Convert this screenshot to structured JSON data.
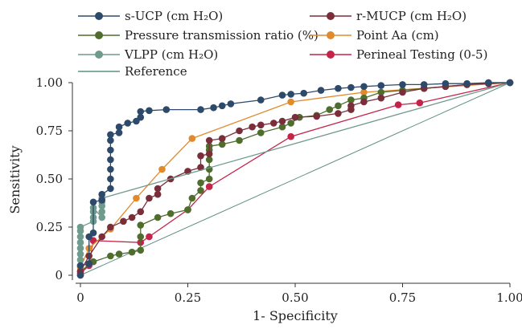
{
  "chart_data": {
    "type": "line",
    "title": "",
    "xlabel": "1- Specificity",
    "ylabel": "Sensitivity",
    "xlim": [
      0,
      1
    ],
    "ylim": [
      0,
      1
    ],
    "x_ticks": [
      "0",
      "0.25",
      "0.50",
      "0.75",
      "1.00"
    ],
    "y_ticks": [
      "0",
      "0.25",
      "0.50",
      "0.75",
      "1.00"
    ],
    "grid": false,
    "legend_position": "top",
    "series": [
      {
        "name": "s-UCP (cm H₂O)",
        "color": "#2e4a6b",
        "marker": "circle",
        "points": [
          [
            0,
            0
          ],
          [
            0,
            0.05
          ],
          [
            0.02,
            0.06
          ],
          [
            0.02,
            0.2
          ],
          [
            0.03,
            0.22
          ],
          [
            0.03,
            0.38
          ],
          [
            0.05,
            0.39
          ],
          [
            0.05,
            0.42
          ],
          [
            0.07,
            0.45
          ],
          [
            0.07,
            0.5
          ],
          [
            0.07,
            0.55
          ],
          [
            0.07,
            0.6
          ],
          [
            0.07,
            0.65
          ],
          [
            0.07,
            0.7
          ],
          [
            0.07,
            0.73
          ],
          [
            0.09,
            0.74
          ],
          [
            0.09,
            0.77
          ],
          [
            0.11,
            0.79
          ],
          [
            0.13,
            0.8
          ],
          [
            0.14,
            0.82
          ],
          [
            0.14,
            0.85
          ],
          [
            0.16,
            0.855
          ],
          [
            0.2,
            0.86
          ],
          [
            0.28,
            0.86
          ],
          [
            0.31,
            0.87
          ],
          [
            0.33,
            0.88
          ],
          [
            0.35,
            0.89
          ],
          [
            0.42,
            0.91
          ],
          [
            0.47,
            0.935
          ],
          [
            0.49,
            0.94
          ],
          [
            0.52,
            0.945
          ],
          [
            0.56,
            0.96
          ],
          [
            0.6,
            0.97
          ],
          [
            0.63,
            0.975
          ],
          [
            0.66,
            0.98
          ],
          [
            0.7,
            0.985
          ],
          [
            0.75,
            0.99
          ],
          [
            0.8,
            0.99
          ],
          [
            0.85,
            0.995
          ],
          [
            0.9,
            0.995
          ],
          [
            0.95,
            1.0
          ],
          [
            1.0,
            1.0
          ]
        ]
      },
      {
        "name": "r-MUCP (cm H₂O)",
        "color": "#7a2e3a",
        "marker": "circle",
        "points": [
          [
            0,
            0
          ],
          [
            0,
            0.02
          ],
          [
            0.02,
            0.1
          ],
          [
            0.05,
            0.2
          ],
          [
            0.07,
            0.25
          ],
          [
            0.1,
            0.28
          ],
          [
            0.12,
            0.3
          ],
          [
            0.14,
            0.33
          ],
          [
            0.16,
            0.4
          ],
          [
            0.18,
            0.42
          ],
          [
            0.18,
            0.45
          ],
          [
            0.21,
            0.5
          ],
          [
            0.25,
            0.54
          ],
          [
            0.28,
            0.56
          ],
          [
            0.28,
            0.62
          ],
          [
            0.3,
            0.63
          ],
          [
            0.3,
            0.7
          ],
          [
            0.33,
            0.71
          ],
          [
            0.37,
            0.75
          ],
          [
            0.4,
            0.77
          ],
          [
            0.42,
            0.78
          ],
          [
            0.45,
            0.79
          ],
          [
            0.47,
            0.8
          ],
          [
            0.5,
            0.82
          ],
          [
            0.55,
            0.825
          ],
          [
            0.6,
            0.84
          ],
          [
            0.63,
            0.86
          ],
          [
            0.63,
            0.88
          ],
          [
            0.66,
            0.9
          ],
          [
            0.7,
            0.92
          ],
          [
            0.75,
            0.95
          ],
          [
            0.8,
            0.97
          ],
          [
            0.85,
            0.98
          ],
          [
            0.9,
            0.99
          ],
          [
            0.95,
            0.995
          ],
          [
            1.0,
            1.0
          ]
        ]
      },
      {
        "name": "Pressure transmission ratio (%)",
        "color": "#4f6e2e",
        "marker": "circle",
        "points": [
          [
            0,
            0.02
          ],
          [
            0.03,
            0.07
          ],
          [
            0.07,
            0.1
          ],
          [
            0.09,
            0.11
          ],
          [
            0.12,
            0.12
          ],
          [
            0.14,
            0.13
          ],
          [
            0.14,
            0.2
          ],
          [
            0.14,
            0.26
          ],
          [
            0.18,
            0.3
          ],
          [
            0.21,
            0.32
          ],
          [
            0.25,
            0.34
          ],
          [
            0.26,
            0.4
          ],
          [
            0.28,
            0.44
          ],
          [
            0.28,
            0.48
          ],
          [
            0.3,
            0.5
          ],
          [
            0.3,
            0.55
          ],
          [
            0.3,
            0.6
          ],
          [
            0.3,
            0.65
          ],
          [
            0.3,
            0.67
          ],
          [
            0.33,
            0.68
          ],
          [
            0.37,
            0.7
          ],
          [
            0.42,
            0.74
          ],
          [
            0.47,
            0.77
          ],
          [
            0.49,
            0.79
          ],
          [
            0.51,
            0.82
          ],
          [
            0.55,
            0.83
          ],
          [
            0.58,
            0.86
          ],
          [
            0.6,
            0.88
          ],
          [
            0.63,
            0.91
          ],
          [
            0.66,
            0.92
          ],
          [
            0.7,
            0.95
          ],
          [
            0.75,
            0.96
          ],
          [
            0.8,
            0.97
          ],
          [
            0.85,
            0.98
          ],
          [
            0.9,
            0.99
          ],
          [
            0.95,
            1.0
          ],
          [
            1.0,
            1.0
          ]
        ]
      },
      {
        "name": "Point Aa (cm)",
        "color": "#e08a2e",
        "marker": "circle",
        "points": [
          [
            0,
            0.04
          ],
          [
            0.02,
            0.14
          ],
          [
            0.07,
            0.24
          ],
          [
            0.13,
            0.4
          ],
          [
            0.19,
            0.55
          ],
          [
            0.26,
            0.71
          ],
          [
            0.49,
            0.9
          ],
          [
            0.66,
            0.95
          ],
          [
            1.0,
            1.0
          ]
        ]
      },
      {
        "name": "VLPP (cm H₂O)",
        "color": "#6f9a8e",
        "marker": "circle",
        "points": [
          [
            0,
            0.05
          ],
          [
            0,
            0.08
          ],
          [
            0,
            0.11
          ],
          [
            0,
            0.14
          ],
          [
            0,
            0.17
          ],
          [
            0,
            0.2
          ],
          [
            0,
            0.23
          ],
          [
            0,
            0.25
          ],
          [
            0.03,
            0.28
          ],
          [
            0.03,
            0.3
          ],
          [
            0.03,
            0.33
          ],
          [
            0.03,
            0.35
          ],
          [
            0.05,
            0.3
          ],
          [
            0.05,
            0.33
          ],
          [
            0.05,
            0.36
          ],
          [
            0.05,
            0.38
          ],
          [
            0.05,
            0.4
          ],
          [
            1.0,
            1.0
          ]
        ]
      },
      {
        "name": "Perineal Testing (0-5)",
        "color": "#c4234a",
        "marker": "circle",
        "points": [
          [
            0,
            0.01
          ],
          [
            0.02,
            0.05
          ],
          [
            0.03,
            0.18
          ],
          [
            0.14,
            0.17
          ],
          [
            0.16,
            0.2
          ],
          [
            0.25,
            0.34
          ],
          [
            0.3,
            0.46
          ],
          [
            0.49,
            0.72
          ],
          [
            0.74,
            0.885
          ],
          [
            0.79,
            0.895
          ],
          [
            1.0,
            1.0
          ]
        ]
      },
      {
        "name": "Reference",
        "color": "#5e8f83",
        "marker": "none",
        "points": [
          [
            0,
            0
          ],
          [
            1,
            1
          ]
        ]
      }
    ]
  }
}
